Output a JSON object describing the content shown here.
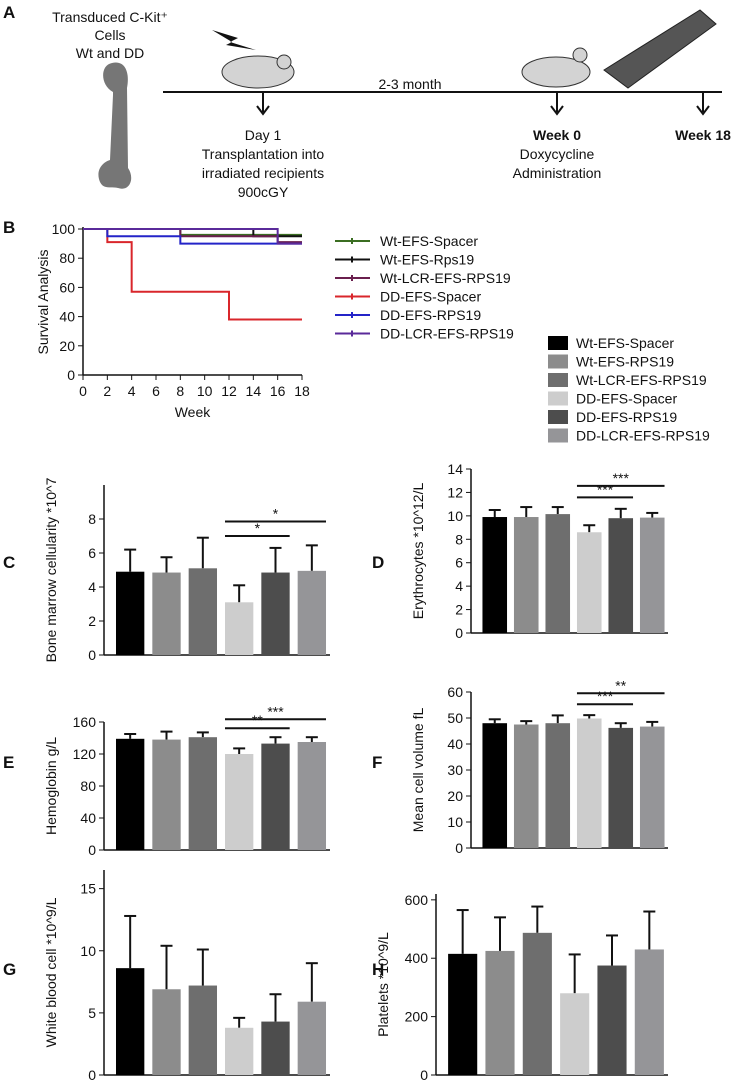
{
  "panel_a": {
    "label": "A",
    "cells_text": [
      "Transduced C-Kit⁺",
      "Cells",
      "Wt and DD"
    ],
    "interval": "2-3 month",
    "events": [
      {
        "lines": [
          "Day 1",
          "Transplantation into",
          "irradiated recipients",
          "900cGY"
        ]
      },
      {
        "lines": [
          "Week 0",
          "Doxycycline",
          "Administration"
        ]
      },
      {
        "lines": [
          "Week 18"
        ]
      }
    ]
  },
  "legend": {
    "names": [
      "Wt-EFS-Spacer",
      "Wt-EFS-RPS19",
      "Wt-LCR-EFS-RPS19",
      "DD-EFS-Spacer",
      "DD-EFS-RPS19",
      "DD-LCR-EFS-RPS19"
    ],
    "colors": [
      "#000000",
      "#8c8c8c",
      "#6e6e6e",
      "#cdcdcd",
      "#4d4d4d",
      "#959598"
    ]
  },
  "chart_data": [
    {
      "type": "line",
      "label": "B",
      "xlabel": "Week",
      "ylabel": "Survival Analysis",
      "xlim": [
        0,
        18
      ],
      "xticks": [
        0,
        2,
        4,
        6,
        8,
        10,
        12,
        14,
        16,
        18
      ],
      "ylim": [
        0,
        100
      ],
      "yticks": [
        0,
        20,
        40,
        60,
        80,
        100
      ],
      "series": [
        {
          "name": "Wt-EFS-Spacer",
          "color": "#3b6e22",
          "x": [
            0,
            8,
            8,
            18
          ],
          "values": [
            100,
            100,
            96,
            96
          ]
        },
        {
          "name": "Wt-EFS-Rps19",
          "color": "#111111",
          "x": [
            0,
            14,
            14,
            18
          ],
          "values": [
            100,
            100,
            95,
            95
          ]
        },
        {
          "name": "Wt-LCR-EFS-RPS19",
          "color": "#6a1f4e",
          "x": [
            0,
            8,
            8,
            16,
            16,
            18
          ],
          "values": [
            100,
            100,
            95,
            95,
            91,
            91
          ]
        },
        {
          "name": "DD-EFS-Spacer",
          "color": "#d9262b",
          "x": [
            0,
            2,
            2,
            4,
            4,
            12,
            12,
            18
          ],
          "values": [
            100,
            100,
            91,
            91,
            57,
            57,
            38,
            38
          ]
        },
        {
          "name": "DD-EFS-RPS19",
          "color": "#2424c8",
          "x": [
            0,
            2,
            2,
            8,
            8,
            18
          ],
          "values": [
            100,
            100,
            95,
            95,
            90,
            90
          ]
        },
        {
          "name": "DD-LCR-EFS-RPS19",
          "color": "#5a2a9a",
          "x": [
            0,
            16,
            16,
            18
          ],
          "values": [
            100,
            100,
            90,
            90
          ]
        }
      ]
    },
    {
      "type": "bar",
      "label": "C",
      "ylabel": "Bone marrow cellularity *10^7",
      "ylim": [
        0,
        10
      ],
      "yticks": [
        0,
        2,
        4,
        6,
        8
      ],
      "values": [
        4.9,
        4.85,
        5.1,
        3.1,
        4.85,
        4.95
      ],
      "errors": [
        1.3,
        0.9,
        1.8,
        1.0,
        1.45,
        1.5
      ],
      "annotations": [
        {
          "text": "*",
          "from": 3,
          "to": 4
        },
        {
          "text": "*",
          "from": 3,
          "to": 5
        }
      ]
    },
    {
      "type": "bar",
      "label": "D",
      "ylabel": "Erythrocytes *10^12/L",
      "ylim": [
        0,
        14
      ],
      "yticks": [
        0,
        2,
        4,
        6,
        8,
        10,
        12,
        14
      ],
      "values": [
        9.9,
        9.9,
        10.15,
        8.6,
        9.8,
        9.85
      ],
      "errors": [
        0.6,
        0.85,
        0.6,
        0.6,
        0.8,
        0.4
      ],
      "annotations": [
        {
          "text": "***",
          "from": 3,
          "to": 4
        },
        {
          "text": "***",
          "from": 3,
          "to": 5
        }
      ]
    },
    {
      "type": "bar",
      "label": "E",
      "ylabel": "Hemoglobin g/L",
      "ylim": [
        0,
        160
      ],
      "yticks": [
        0,
        40,
        80,
        120,
        160
      ],
      "values": [
        139,
        138,
        141,
        120,
        133,
        135
      ],
      "errors": [
        6,
        10,
        6,
        7,
        8,
        6
      ],
      "annotations": [
        {
          "text": "**",
          "from": 3,
          "to": 4
        },
        {
          "text": "***",
          "from": 3,
          "to": 5
        }
      ]
    },
    {
      "type": "bar",
      "label": "F",
      "ylabel": "Mean cell volume fL",
      "ylim": [
        0,
        60
      ],
      "yticks": [
        0,
        10,
        20,
        30,
        40,
        50,
        60
      ],
      "values": [
        48,
        47.5,
        48,
        49.8,
        46.2,
        46.7
      ],
      "errors": [
        1.5,
        1.3,
        3,
        1.3,
        1.8,
        1.8
      ],
      "annotations": [
        {
          "text": "***",
          "from": 3,
          "to": 4
        },
        {
          "text": "**",
          "from": 3,
          "to": 5
        }
      ]
    },
    {
      "type": "bar",
      "label": "G",
      "ylabel": "White blood cell *10^9/L",
      "ylim": [
        0,
        16.5
      ],
      "yticks": [
        0,
        5,
        10,
        15
      ],
      "values": [
        8.6,
        6.9,
        7.2,
        3.8,
        4.3,
        5.9
      ],
      "errors": [
        4.2,
        3.5,
        2.9,
        0.8,
        2.2,
        3.1
      ],
      "annotations": []
    },
    {
      "type": "bar",
      "label": "H",
      "ylabel": "Platelets *10^9/L",
      "ylim": [
        0,
        620
      ],
      "yticks": [
        0,
        200,
        400,
        600
      ],
      "values": [
        415,
        425,
        487,
        280,
        375,
        430
      ],
      "errors": [
        150,
        115,
        90,
        133,
        103,
        130
      ],
      "annotations": []
    }
  ]
}
